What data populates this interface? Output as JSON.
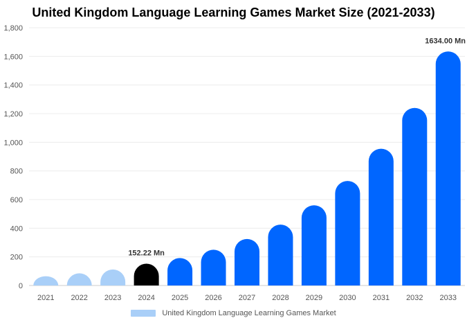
{
  "chart_data": {
    "type": "bar",
    "title": "United Kingdom Language Learning Games Market Size (2021-2033)",
    "categories": [
      "2021",
      "2022",
      "2023",
      "2024",
      "2025",
      "2026",
      "2027",
      "2028",
      "2029",
      "2030",
      "2031",
      "2032",
      "2033"
    ],
    "series": [
      {
        "name": "United Kingdom Language Learning Games Market",
        "values": [
          65,
          85,
          112,
          152.22,
          192,
          250,
          325,
          425,
          560,
          730,
          955,
          1240,
          1634
        ]
      }
    ],
    "colors": [
      "#a9cff8",
      "#a9cff8",
      "#a9cff8",
      "#000000",
      "#0066ff",
      "#0066ff",
      "#0066ff",
      "#0066ff",
      "#0066ff",
      "#0066ff",
      "#0066ff",
      "#0066ff",
      "#0066ff"
    ],
    "data_labels": [
      {
        "index": 3,
        "text": "152.22 Mn"
      },
      {
        "index": 12,
        "text": "1634.00 Mn"
      }
    ],
    "yticks": [
      "0",
      "200",
      "400",
      "600",
      "800",
      "1,000",
      "1,200",
      "1,400",
      "1,600",
      "1,800"
    ],
    "ylim": [
      0,
      1800
    ],
    "xlabel": "",
    "ylabel": "",
    "legend_position": "bottom"
  }
}
